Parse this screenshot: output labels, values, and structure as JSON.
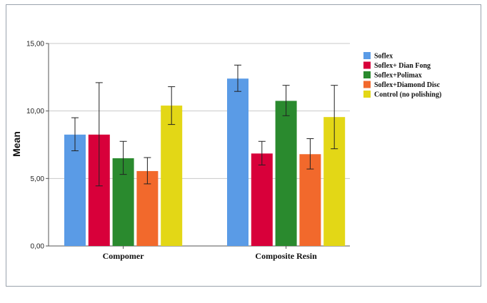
{
  "chart_data": {
    "type": "bar",
    "ylabel": "Mean",
    "xlabel": "",
    "title": "",
    "categories": [
      "Compomer",
      "Composite Resin"
    ],
    "ylim": [
      0,
      15
    ],
    "yticks": [
      0,
      5,
      10,
      15
    ],
    "ytick_labels": [
      "0,00",
      "5,00",
      "10,00",
      "15,00"
    ],
    "grid": true,
    "legend_position": "top-right",
    "error_bars": true,
    "series": [
      {
        "name": "Soflex",
        "color": "#5a9be6",
        "values": [
          8.25,
          12.4
        ],
        "err_low": [
          7.05,
          11.45
        ],
        "err_high": [
          9.5,
          13.4
        ]
      },
      {
        "name": "Soflex+ Dian Fong",
        "color": "#d8003a",
        "values": [
          8.25,
          6.85
        ],
        "err_low": [
          4.45,
          6.0
        ],
        "err_high": [
          12.1,
          7.75
        ]
      },
      {
        "name": "Soflex+Polimax",
        "color": "#2a8a2e",
        "values": [
          6.5,
          10.75
        ],
        "err_low": [
          5.3,
          9.65
        ],
        "err_high": [
          7.75,
          11.9
        ]
      },
      {
        "name": "Soflex+Diamond Disc",
        "color": "#f2692c",
        "values": [
          5.55,
          6.8
        ],
        "err_low": [
          4.6,
          5.7
        ],
        "err_high": [
          6.55,
          7.95
        ]
      },
      {
        "name": "Control (no polishing)",
        "color": "#e3d716",
        "values": [
          10.4,
          9.55
        ],
        "err_low": [
          9.0,
          7.2
        ],
        "err_high": [
          11.8,
          11.9
        ]
      }
    ]
  }
}
